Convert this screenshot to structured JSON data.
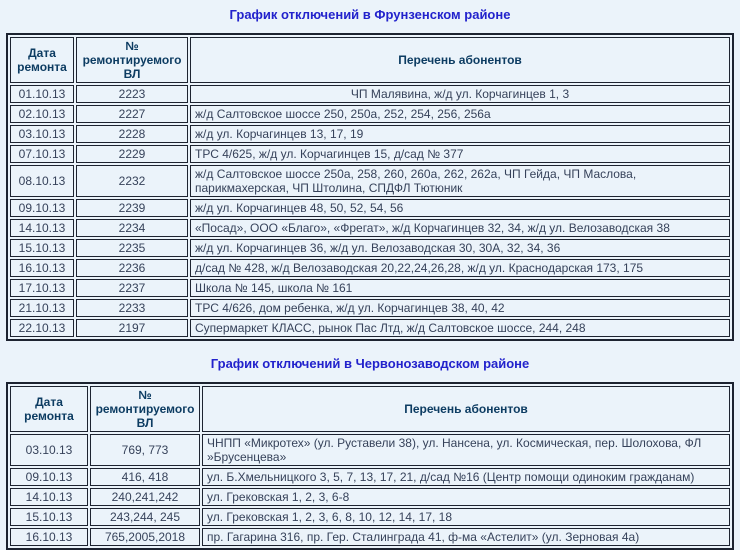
{
  "colors": {
    "page_background": "#ebf3fa",
    "title_text": "#2222cc",
    "header_text": "#0d3c62",
    "body_text": "#36425a",
    "table_border": "#1d2330"
  },
  "sections": [
    {
      "title": "График отключений в Фрунзенском районе",
      "headers": {
        "date": "Дата ремонта",
        "line": "№ ремонтируемого ВЛ",
        "subscribers": "Перечень абонентов"
      },
      "rows": [
        {
          "date": "01.10.13",
          "line": "2223",
          "subscribers": "ЧП Малявина, ж/д ул. Корчагинцев 1, 3",
          "align": "center"
        },
        {
          "date": "02.10.13",
          "line": "2227",
          "subscribers": "ж/д Салтовское шоссе 250, 250а, 252, 254, 256, 256а"
        },
        {
          "date": "03.10.13",
          "line": "2228",
          "subscribers": "ж/д ул. Корчагинцев 13, 17, 19"
        },
        {
          "date": "07.10.13",
          "line": "2229",
          "subscribers": "ТРС 4/625, ж/д ул. Корчагинцев 15, д/сад № 377"
        },
        {
          "date": "08.10.13",
          "line": "2232",
          "subscribers": "ж/д Салтовское шоссе 250а, 258, 260, 260а, 262, 262а, ЧП Гейда, ЧП Маслова, парикмахерская, ЧП Штолина, СПДФЛ Тютюник"
        },
        {
          "date": "09.10.13",
          "line": "2239",
          "subscribers": "ж/д ул. Корчагинцев 48, 50, 52, 54, 56"
        },
        {
          "date": "14.10.13",
          "line": "2234",
          "subscribers": "«Посад», ООО «Благо», «Фрегат», ж/д Корчагинцев 32, 34, ж/д ул. Велозаводская 38"
        },
        {
          "date": "15.10.13",
          "line": "2235",
          "subscribers": "ж/д ул. Корчагинцев 36, ж/д ул. Велозаводская 30, 30А, 32, 34, 36"
        },
        {
          "date": "16.10.13",
          "line": "2236",
          "subscribers": "д/сад № 428, ж/д Велозаводская 20,22,24,26,28, ж/д ул. Краснодарская 173, 175"
        },
        {
          "date": "17.10.13",
          "line": "2237",
          "subscribers": "Школа № 145, школа № 161"
        },
        {
          "date": "21.10.13",
          "line": "2233",
          "subscribers": "ТРС 4/626, дом ребенка, ж/д ул. Корчагинцев 38, 40, 42"
        },
        {
          "date": "22.10.13",
          "line": "2197",
          "subscribers": "Супермаркет КЛАСС, рынок Пас Лтд, ж/д Салтовское шоссе, 244, 248"
        }
      ]
    },
    {
      "title": "График отключений в Червонозаводском районе",
      "headers": {
        "date": "Дата ремонта",
        "line": "№ ремонтируемого ВЛ",
        "subscribers": "Перечень абонентов"
      },
      "rows": [
        {
          "date": "03.10.13",
          "line": "769, 773",
          "subscribers": "ЧНПП «Микротех» (ул. Руставели 38), ул. Нансена, ул. Космическая, пер. Шолохова, ФЛ »Брусенцева»"
        },
        {
          "date": "09.10.13",
          "line": "416, 418",
          "subscribers": "ул. Б.Хмельницкого 3, 5, 7, 13, 17, 21, д/сад №16 (Центр помощи одиноким гражданам)"
        },
        {
          "date": "14.10.13",
          "line": "240,241,242",
          "subscribers": "ул. Грековская 1, 2, 3, 6-8"
        },
        {
          "date": "15.10.13",
          "line": "243,244, 245",
          "subscribers": "ул. Грековская 1, 2, 3, 6, 8, 10, 12, 14, 17, 18"
        },
        {
          "date": "16.10.13",
          "line": "765,2005,2018",
          "subscribers": "пр. Гагарина 316, пр. Гер. Сталинграда 41, ф-ма «Астелит» (ул. Зерновая 4а)"
        }
      ]
    }
  ]
}
